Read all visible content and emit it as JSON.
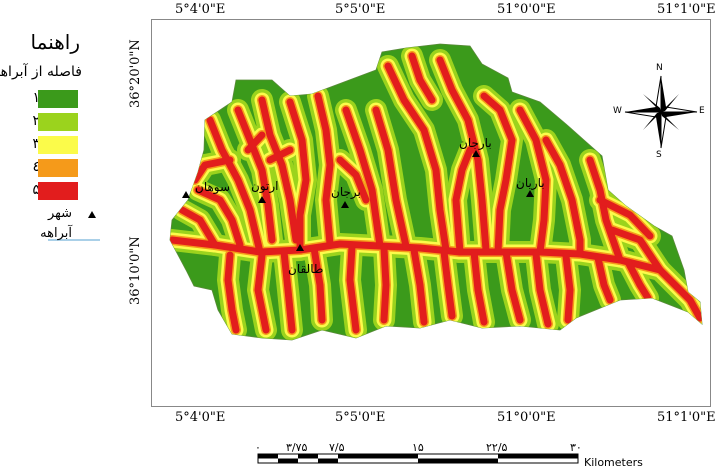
{
  "map": {
    "top_coords": [
      "5°4'0\"E",
      "5°5'0\"E",
      "51°0'0\"E",
      "51°1'0\"E"
    ],
    "bottom_coords": [
      "5°4'0\"E",
      "5°5'0\"E",
      "51°0'0\"E",
      "51°1'0\"E"
    ],
    "left_coords": [
      "36°20'0\"N",
      "36°10'0\"N"
    ]
  },
  "legend": {
    "title": "راهنما",
    "subtitle": "فاصله از آبراهه",
    "classes": [
      {
        "label": "۱",
        "color": "#3b9a1b"
      },
      {
        "label": "۲",
        "color": "#9bd31d"
      },
      {
        "label": "۳",
        "color": "#fbfb4a"
      },
      {
        "label": "٤",
        "color": "#f59a1a"
      },
      {
        "label": "۵",
        "color": "#e21d1d"
      }
    ],
    "city_label": "شهر",
    "river_label": "آبراهه"
  },
  "compass": {
    "n": "N",
    "s": "S",
    "e": "E",
    "w": "W"
  },
  "cities": [
    {
      "name": "سوهان"
    },
    {
      "name": "ارتون"
    },
    {
      "name": "برجان"
    },
    {
      "name": "طالقان"
    },
    {
      "name": "بارجان"
    },
    {
      "name": "باریان"
    }
  ],
  "scale": {
    "labels": [
      "۰",
      "۳/۷۵",
      "۷/۵",
      "۱۵",
      "۲۲/۵",
      "۳۰"
    ],
    "unit": "Kilometers"
  }
}
